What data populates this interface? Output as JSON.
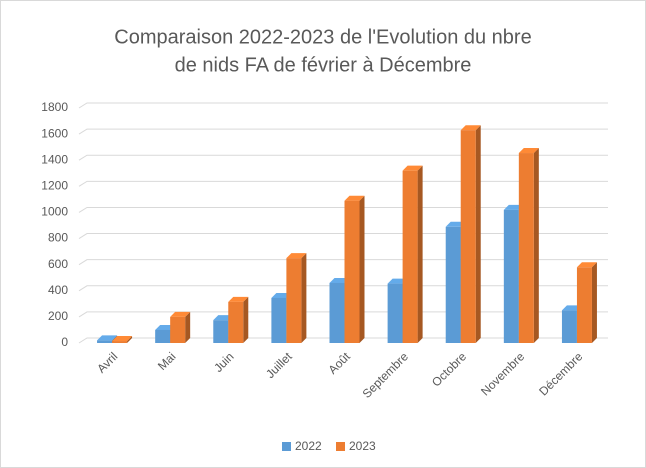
{
  "chart_data": {
    "type": "bar",
    "title": [
      "Comparaison 2022-2023 de l'Evolution du nbre",
      "de nids FA de février à Décembre"
    ],
    "categories": [
      "Avril",
      "Mai",
      "Juin",
      "Juillet",
      "Août",
      "Septembre",
      "Octobre",
      "Novembre",
      "Décembre"
    ],
    "series": [
      {
        "name": "2022",
        "color": "#5b9bd5",
        "values": [
          20,
          100,
          175,
          345,
          460,
          455,
          890,
          1020,
          250
        ]
      },
      {
        "name": "2023",
        "color": "#ed7d31",
        "values": [
          15,
          200,
          315,
          650,
          1090,
          1320,
          1630,
          1455,
          580
        ]
      }
    ],
    "ylim": [
      0,
      1800
    ],
    "yticks": [
      0,
      200,
      400,
      600,
      800,
      1000,
      1200,
      1400,
      1600,
      1800
    ],
    "grid": true,
    "legend": "bottom"
  }
}
